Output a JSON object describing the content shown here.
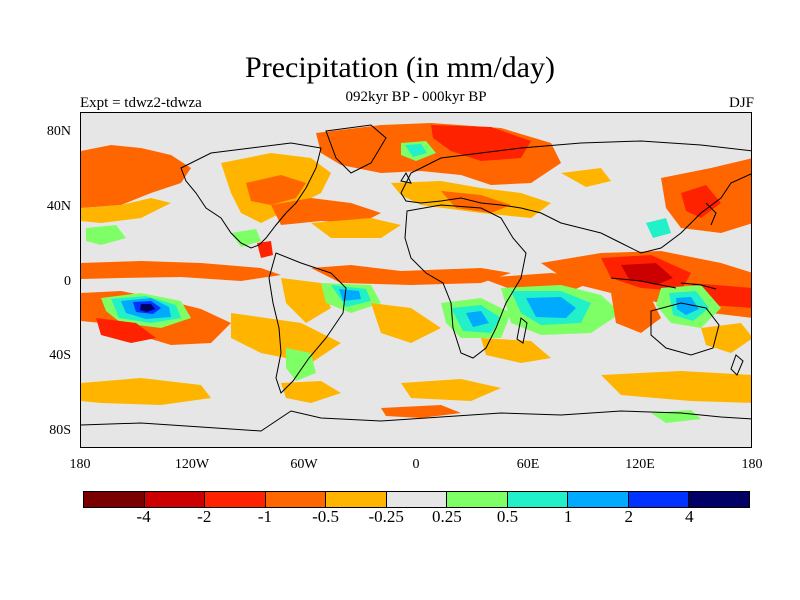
{
  "title": "Precipitation (in mm/day)",
  "subtitle": "092kyr BP - 000kyr BP",
  "left_label": "Expt = tdwz2-tdwza",
  "right_label": "DJF",
  "y_labels": [
    "80N",
    "40N",
    "0",
    "40S",
    "80S"
  ],
  "x_labels": [
    "180",
    "120W",
    "60W",
    "0",
    "60E",
    "120E",
    "180"
  ],
  "colorbar": {
    "colors": [
      "#7a0000",
      "#cc0000",
      "#ff2200",
      "#ff6600",
      "#ffb400",
      "#e6e6e6",
      "#7fff66",
      "#22f0c8",
      "#00aaff",
      "#0033ff",
      "#000066"
    ],
    "labels": [
      "-4",
      "-2",
      "-1",
      "-0.5",
      "-0.25",
      "0.25",
      "0.5",
      "1",
      "2",
      "4"
    ]
  }
}
